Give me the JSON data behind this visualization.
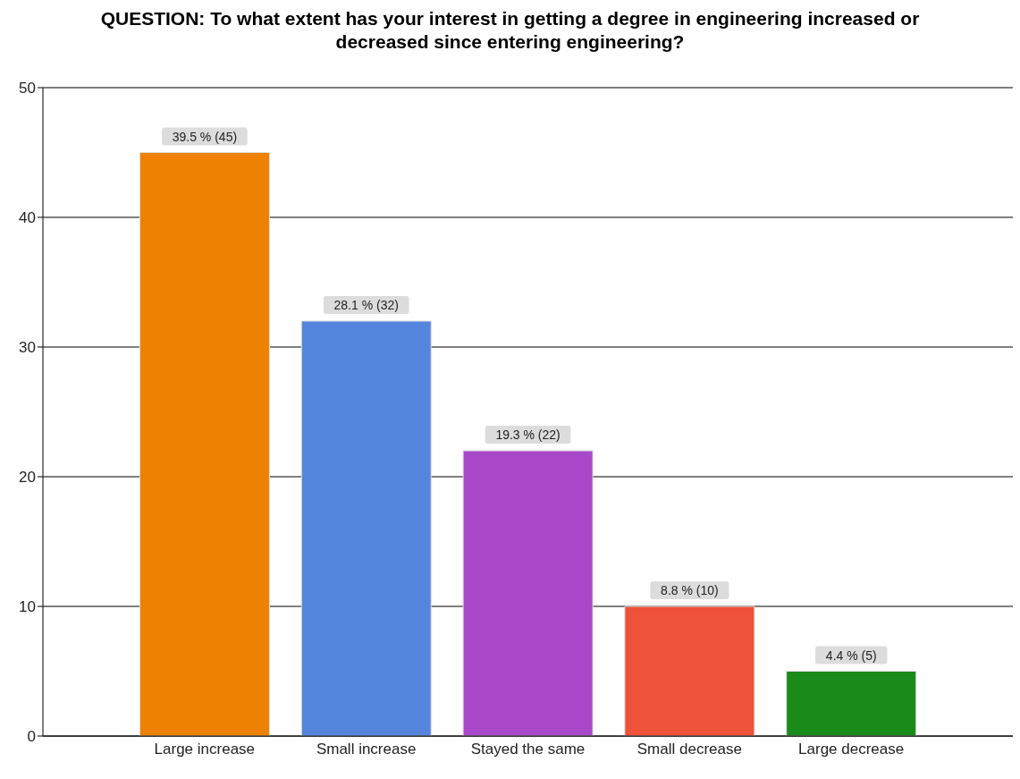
{
  "chart_data": {
    "type": "bar",
    "title": "QUESTION: To what extent has your interest in getting a degree in engineering increased or decreased since entering engineering?",
    "categories": [
      "Large increase",
      "Small increase",
      "Stayed the same",
      "Small decrease",
      "Large decrease"
    ],
    "values": [
      45,
      32,
      22,
      10,
      5
    ],
    "colors": [
      "#ee8200",
      "#5585dd",
      "#a848c8",
      "#ee5238",
      "#1a8a1a"
    ],
    "value_labels": [
      "39.5 % (45)",
      "28.1 % (32)",
      "19.3 % (22)",
      "8.8 % (10)",
      "4.4 % (5)"
    ],
    "ylim": [
      0,
      50
    ],
    "yticks": [
      0,
      10,
      20,
      30,
      40,
      50
    ],
    "grid": "y"
  }
}
